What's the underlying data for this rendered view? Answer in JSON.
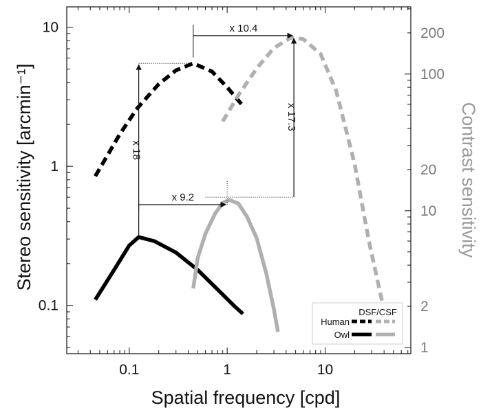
{
  "chart_data": {
    "type": "line",
    "x_scale": "log",
    "y_scale": "log",
    "xlabel": "Spatial frequency [cpd]",
    "ylabel": "Stereo sensitivity [arcmin⁻¹]",
    "ylabel_right": "Contrast sensitivity",
    "xlim": [
      0.023,
      75
    ],
    "ylim": [
      0.045,
      14
    ],
    "ylim_right": [
      0.9,
      310
    ],
    "x_ticks": [
      {
        "value": 0.1,
        "label": "0.1"
      },
      {
        "value": 1,
        "label": "1"
      },
      {
        "value": 10,
        "label": "10"
      }
    ],
    "y_ticks": [
      {
        "value": 0.1,
        "label": "0.1"
      },
      {
        "value": 1,
        "label": "1"
      },
      {
        "value": 10,
        "label": "10"
      }
    ],
    "y_ticks_right": [
      {
        "value": 1,
        "label": "1"
      },
      {
        "value": 2,
        "label": "2"
      },
      {
        "value": 10,
        "label": "10"
      },
      {
        "value": 20,
        "label": "20"
      },
      {
        "value": 100,
        "label": "100"
      },
      {
        "value": 200,
        "label": "200"
      }
    ],
    "legend": {
      "header": "DSF/CSF",
      "placement": "bottom-right",
      "entries": [
        "Human",
        "Owl"
      ]
    },
    "colors": {
      "dsf": "#000000",
      "csf": "#b0b0b0"
    },
    "series": [
      {
        "name": "Human",
        "measure": "DSF",
        "axis": "left",
        "style": "dashed",
        "color": "#000000",
        "x": [
          0.045,
          0.08,
          0.12,
          0.2,
          0.3,
          0.45,
          0.7,
          1.0,
          1.4
        ],
        "y": [
          0.85,
          1.7,
          2.6,
          3.9,
          4.9,
          5.5,
          4.8,
          3.7,
          2.8
        ]
      },
      {
        "name": "Human",
        "measure": "CSF",
        "axis": "right",
        "style": "dashed",
        "color": "#b0b0b0",
        "x": [
          0.9,
          1.3,
          2,
          3,
          4.5,
          6,
          9,
          13,
          20,
          28,
          38
        ],
        "y": [
          45,
          70,
          110,
          155,
          185,
          180,
          140,
          75,
          22,
          6,
          2.2
        ]
      },
      {
        "name": "Owl",
        "measure": "DSF",
        "axis": "left",
        "style": "solid",
        "color": "#000000",
        "x": [
          0.045,
          0.07,
          0.1,
          0.125,
          0.18,
          0.3,
          0.5,
          0.8,
          1.2,
          1.45
        ],
        "y": [
          0.11,
          0.18,
          0.27,
          0.31,
          0.29,
          0.24,
          0.18,
          0.13,
          0.098,
          0.087
        ]
      },
      {
        "name": "Owl",
        "measure": "CSF",
        "axis": "right",
        "style": "solid",
        "color": "#b0b0b0",
        "x": [
          0.45,
          0.5,
          0.6,
          0.75,
          0.9,
          1.05,
          1.3,
          1.6,
          2.0,
          2.5,
          3.0,
          3.3
        ],
        "y": [
          2.7,
          4.5,
          6.8,
          9.5,
          11.4,
          12.0,
          11.3,
          9.0,
          6.3,
          3.5,
          1.9,
          1.3
        ]
      }
    ],
    "annotations": [
      {
        "label": "x 10.4",
        "from_x": 0.45,
        "to_x": 4.8,
        "y": 8.7,
        "direction": "horizontal"
      },
      {
        "label": "x 9.2",
        "from_x": 0.125,
        "to_x": 1.0,
        "y": 0.53,
        "direction": "horizontal"
      },
      {
        "label": "x 18",
        "from_y": 0.31,
        "to_y": 5.5,
        "x": 0.125,
        "direction": "vertical"
      },
      {
        "label": "x 17.3",
        "from_y": 0.6,
        "to_y": 8.5,
        "x": 4.8,
        "direction": "vertical"
      }
    ]
  }
}
